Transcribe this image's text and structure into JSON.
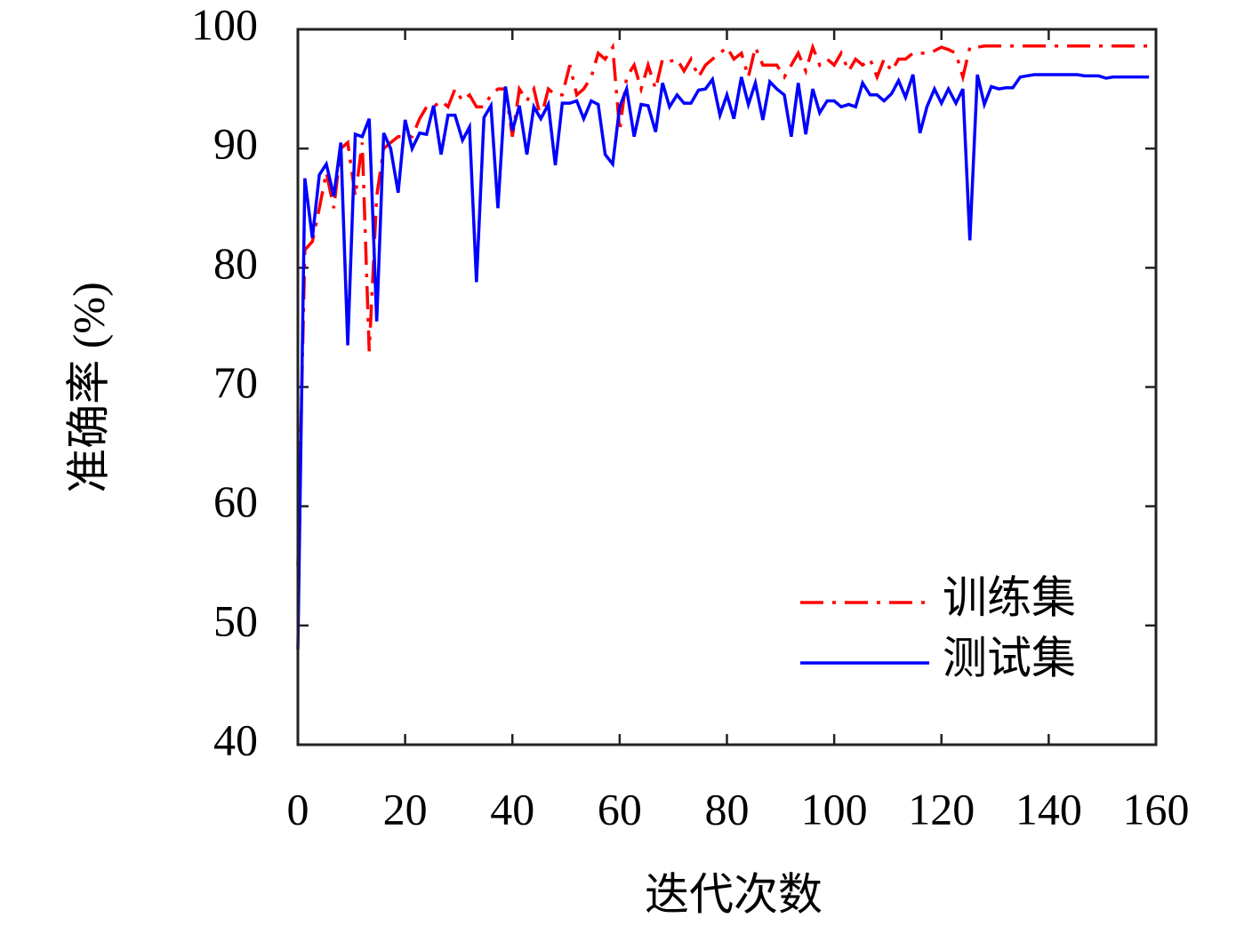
{
  "chart_data": {
    "type": "line",
    "xlabel": "迭代次数",
    "ylabel": "准确率 (%)",
    "xlim": [
      0,
      160
    ],
    "xticks": [
      0,
      20,
      40,
      60,
      80,
      100,
      120,
      140,
      160
    ],
    "ylim": [
      40,
      100
    ],
    "yticks": [
      40,
      50,
      60,
      70,
      80,
      90,
      100
    ],
    "legend": "lower right",
    "x": [
      0,
      1.3,
      2.7,
      4,
      5.3,
      6.7,
      8,
      9.3,
      10.7,
      12,
      13.3,
      14.7,
      16,
      17.3,
      18.7,
      20,
      21.3,
      22.7,
      24,
      25.3,
      26.7,
      28,
      29.3,
      30.7,
      32,
      33.3,
      34.7,
      36,
      37.3,
      38.7,
      40,
      41.3,
      42.7,
      44,
      45.3,
      46.7,
      48,
      49.3,
      50.7,
      52,
      53.3,
      54.7,
      56,
      57.3,
      58.7,
      60,
      61.3,
      62.7,
      64,
      65.3,
      66.7,
      68,
      69.3,
      70.7,
      72,
      73.3,
      74.7,
      76,
      77.3,
      78.7,
      80,
      81.3,
      82.7,
      84,
      85.3,
      86.7,
      88,
      89.3,
      90.7,
      92,
      93.3,
      94.7,
      96,
      97.3,
      98.7,
      100,
      101.3,
      102.7,
      104,
      105.3,
      106.7,
      108,
      109.3,
      110.7,
      112,
      113.3,
      114.7,
      116,
      117.3,
      118.7,
      120,
      121.3,
      122.7,
      124,
      125.3,
      126.7,
      128,
      129.3,
      130.7,
      132,
      133.3,
      134.7,
      136,
      137.3,
      138.7,
      140,
      141.3,
      142.7,
      144,
      145.3,
      146.7,
      148,
      149.3,
      150.7,
      152,
      153.3,
      154.7,
      156,
      157.3,
      158.7
    ],
    "series": [
      {
        "name": "训练集",
        "color": "#ff0000",
        "dash": "dashdot",
        "values": [
          55,
          81.5,
          82.2,
          85,
          88,
          85,
          90,
          90.5,
          86,
          90.5,
          73,
          86,
          90,
          90.5,
          91,
          91,
          91,
          92.5,
          93.5,
          93.5,
          94,
          93.5,
          95,
          94,
          94.5,
          93.5,
          93.5,
          94.5,
          95,
          95,
          91,
          95,
          94,
          95,
          92.5,
          95,
          94.5,
          94.5,
          97,
          94.5,
          95,
          96,
          98,
          97.5,
          98.5,
          91.5,
          96,
          97,
          95,
          97,
          95,
          97.5,
          97.3,
          97.5,
          96.5,
          97.5,
          96,
          97,
          97.5,
          98,
          98.5,
          97.5,
          98,
          96,
          98.5,
          97,
          97,
          97,
          96,
          97,
          98,
          96.5,
          98.5,
          97,
          97.5,
          97,
          98,
          96.5,
          97.5,
          97,
          97.5,
          96,
          97.5,
          96.5,
          97.5,
          97.5,
          98,
          98,
          98,
          98.2,
          98.5,
          98.3,
          98,
          96,
          98.5,
          98.5,
          98.6,
          98.6,
          98.6,
          98.6,
          98.6,
          98.6,
          98.6,
          98.6,
          98.6,
          98.6,
          98.6,
          98.6,
          98.6,
          98.6,
          98.6,
          98.6,
          98.6,
          98.6,
          98.6,
          98.6,
          98.6,
          98.6,
          98.6,
          98.6
        ]
      },
      {
        "name": "测试集",
        "color": "#0000ff",
        "dash": "solid",
        "values": [
          48,
          87.5,
          82.5,
          87.8,
          88.7,
          86,
          90.5,
          73.5,
          91.2,
          91,
          92.5,
          75.5,
          91.3,
          90,
          86.3,
          92.4,
          90,
          91.3,
          91.2,
          93.6,
          89.5,
          92.8,
          92.8,
          90.7,
          91.8,
          78.8,
          92.6,
          93.6,
          85,
          95.2,
          91.5,
          93.6,
          89.5,
          93.5,
          92.5,
          93.7,
          88.6,
          93.8,
          93.8,
          94,
          92.5,
          94,
          93.7,
          89.5,
          88.7,
          93.5,
          95,
          91,
          93.7,
          93.6,
          91.4,
          95.5,
          93.5,
          94.5,
          93.8,
          93.8,
          94.9,
          95,
          95.8,
          92.8,
          94.5,
          92.5,
          96,
          93.7,
          95.5,
          92.4,
          95.6,
          95,
          94.5,
          91,
          95.5,
          91.2,
          95,
          93,
          94,
          94,
          93.5,
          93.7,
          93.5,
          95.5,
          94.5,
          94.5,
          94,
          94.6,
          95.7,
          94.3,
          96.2,
          91.3,
          93.5,
          95,
          93.8,
          95,
          93.8,
          95,
          82.3,
          96.2,
          93.7,
          95.2,
          95,
          95.1,
          95.1,
          96,
          96.1,
          96.2,
          96.2,
          96.2,
          96.2,
          96.2,
          96.2,
          96.2,
          96.1,
          96.1,
          96.1,
          95.9,
          96,
          96,
          96,
          96,
          96,
          96
        ]
      }
    ]
  }
}
